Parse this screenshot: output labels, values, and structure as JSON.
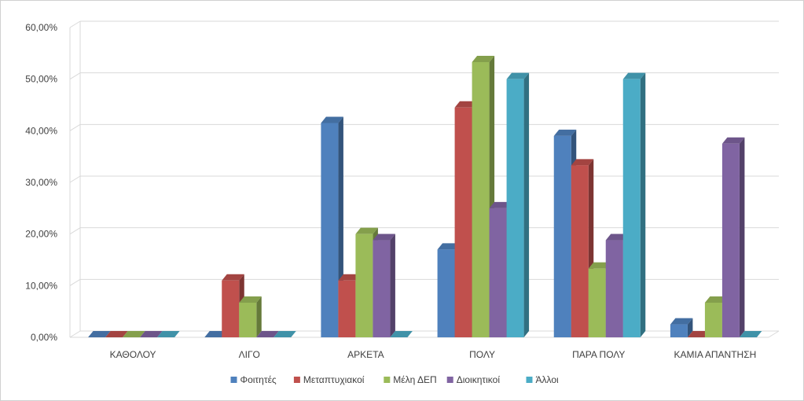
{
  "chart_data": {
    "type": "bar",
    "title": "",
    "xlabel": "",
    "ylabel": "",
    "ylim": [
      0,
      60
    ],
    "yticks": [
      0,
      10,
      20,
      30,
      40,
      50,
      60
    ],
    "ytick_labels": [
      "0,00%",
      "10,00%",
      "20,00%",
      "30,00%",
      "40,00%",
      "50,00%",
      "60,00%"
    ],
    "grid": true,
    "legend_position": "bottom",
    "categories": [
      "ΚΑΘΟΛΟΥ",
      "ΛΙΓΟ",
      "ΑΡΚΕΤΑ",
      "ΠΟΛΥ",
      "ΠΑΡΑ ΠΟΛΥ",
      "ΚΑΜΙΑ ΑΠΑΝΤΗΣΗ"
    ],
    "series": [
      {
        "name": "Φοιτητές",
        "color": "#4f81bd",
        "values": [
          0,
          0,
          41.5,
          17,
          39,
          2.5
        ]
      },
      {
        "name": "Μεταπτυχιακοί",
        "color": "#c0504d",
        "values": [
          0,
          11,
          11,
          44.5,
          33.3,
          0
        ]
      },
      {
        "name": "Μέλη ΔΕΠ",
        "color": "#9bbb59",
        "values": [
          0,
          6.7,
          20,
          53.3,
          13.3,
          6.7
        ]
      },
      {
        "name": "Διοικητικοί",
        "color": "#8064a2",
        "values": [
          0,
          0,
          18.8,
          25,
          18.8,
          37.5
        ]
      },
      {
        "name": "Άλλοι",
        "color": "#4bacc6",
        "values": [
          0,
          0,
          0,
          50,
          50,
          0
        ]
      }
    ]
  }
}
